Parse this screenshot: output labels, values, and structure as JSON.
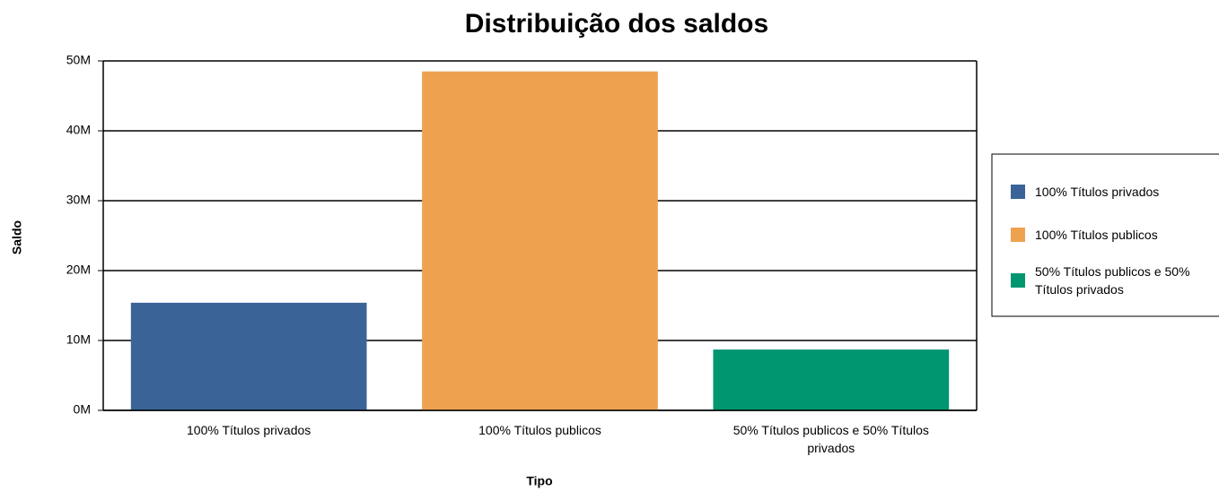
{
  "chart_data": {
    "type": "bar",
    "title": "Distribuição dos saldos",
    "x_label": "Tipo",
    "y_label": "Saldo",
    "categories": [
      "100% Títulos privados",
      "100% Títulos publicos",
      "50% Títulos publicos e 50% Títulos privados"
    ],
    "values": [
      15400000,
      48500000,
      8700000
    ],
    "colors": [
      "#3a6497",
      "#eea250",
      "#009670"
    ],
    "ylim": [
      0,
      50000000
    ],
    "yticks": [
      {
        "value": 0,
        "label": "0M"
      },
      {
        "value": 10000000,
        "label": "10M"
      },
      {
        "value": 20000000,
        "label": "20M"
      },
      {
        "value": 30000000,
        "label": "30M"
      },
      {
        "value": 40000000,
        "label": "40M"
      },
      {
        "value": 50000000,
        "label": "50M"
      }
    ],
    "grid": true,
    "legend": "right"
  }
}
